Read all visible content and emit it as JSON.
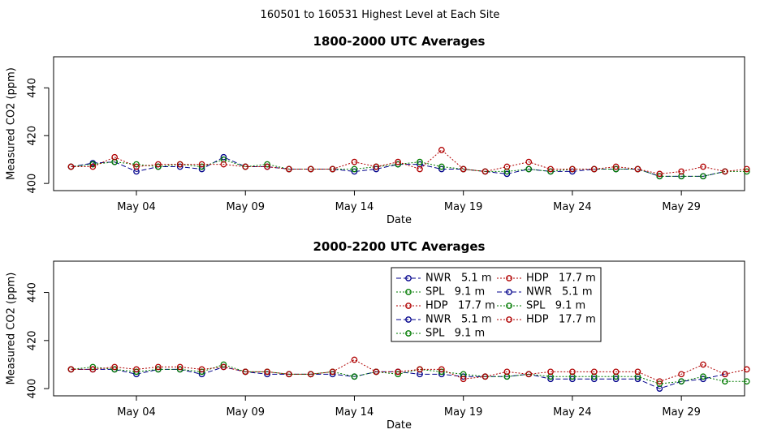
{
  "page_title": "160501  to  160531 Highest Level at Each Site",
  "colors": {
    "NWR": "#00008b",
    "SPL": "#007a00",
    "HDP": "#b00000"
  },
  "chart_data": [
    {
      "type": "line",
      "title": "1800-2000 UTC Averages",
      "xlabel": "Date",
      "ylabel": "Measured CO2 (ppm)",
      "xlim": [
        0.2,
        31.9
      ],
      "ylim": [
        397,
        453
      ],
      "x_ticks": [
        {
          "v": 4,
          "label": "May 04"
        },
        {
          "v": 9,
          "label": "May 09"
        },
        {
          "v": 14,
          "label": "May 14"
        },
        {
          "v": 19,
          "label": "May 19"
        },
        {
          "v": 24,
          "label": "May 24"
        },
        {
          "v": 29,
          "label": "May 29"
        }
      ],
      "y_ticks": [
        400,
        420,
        440
      ],
      "series": [
        {
          "name": "NWR",
          "values": [
            [
              1,
              407
            ],
            [
              2,
              408.5
            ],
            [
              3,
              409
            ],
            [
              4,
              405
            ],
            [
              5,
              407
            ],
            [
              6,
              407
            ],
            [
              7,
              406
            ],
            [
              8,
              411
            ],
            [
              9,
              407
            ],
            [
              10,
              407
            ],
            [
              11,
              406
            ],
            [
              12,
              406
            ],
            [
              13,
              406
            ],
            [
              14,
              405
            ],
            [
              15,
              406
            ],
            [
              16,
              408
            ],
            [
              17,
              408
            ],
            [
              18,
              406
            ],
            [
              19,
              406
            ],
            [
              20,
              405
            ],
            [
              21,
              404
            ],
            [
              22,
              406
            ],
            [
              23,
              405
            ],
            [
              24,
              405
            ],
            [
              25,
              406
            ],
            [
              26,
              406
            ],
            [
              27,
              406
            ],
            [
              28,
              403
            ],
            [
              29,
              403
            ],
            [
              30,
              403
            ],
            [
              31,
              405
            ]
          ]
        },
        {
          "name": "SPL",
          "values": [
            [
              1,
              407
            ],
            [
              2,
              408
            ],
            [
              3,
              409
            ],
            [
              4,
              408
            ],
            [
              5,
              407
            ],
            [
              6,
              408
            ],
            [
              7,
              407
            ],
            [
              8,
              410
            ],
            [
              9,
              407
            ],
            [
              10,
              408
            ],
            [
              11,
              406
            ],
            [
              12,
              406
            ],
            [
              13,
              406
            ],
            [
              14,
              406
            ],
            [
              15,
              407
            ],
            [
              16,
              408
            ],
            [
              17,
              409
            ],
            [
              18,
              407
            ],
            [
              19,
              406
            ],
            [
              20,
              405
            ],
            [
              21,
              405
            ],
            [
              22,
              406
            ],
            [
              23,
              405
            ],
            [
              24,
              406
            ],
            [
              25,
              406
            ],
            [
              26,
              406
            ],
            [
              27,
              406
            ],
            [
              28,
              403
            ],
            [
              29,
              403
            ],
            [
              30,
              403
            ],
            [
              31,
              405
            ],
            [
              32,
              405
            ]
          ]
        },
        {
          "name": "HDP",
          "values": [
            [
              1,
              407
            ],
            [
              2,
              407
            ],
            [
              3,
              411
            ],
            [
              4,
              407
            ],
            [
              5,
              408
            ],
            [
              6,
              408
            ],
            [
              7,
              408
            ],
            [
              8,
              408
            ],
            [
              9,
              407
            ],
            [
              10,
              407
            ],
            [
              11,
              406
            ],
            [
              12,
              406
            ],
            [
              13,
              406
            ],
            [
              14,
              409
            ],
            [
              15,
              407
            ],
            [
              16,
              409
            ],
            [
              17,
              406
            ],
            [
              18,
              414
            ],
            [
              19,
              406
            ],
            [
              20,
              405
            ],
            [
              21,
              407
            ],
            [
              22,
              409
            ],
            [
              23,
              406
            ],
            [
              24,
              406
            ],
            [
              25,
              406
            ],
            [
              26,
              407
            ],
            [
              27,
              406
            ],
            [
              28,
              404
            ],
            [
              29,
              405
            ],
            [
              30,
              407
            ],
            [
              31,
              405
            ],
            [
              32,
              406
            ]
          ]
        }
      ]
    },
    {
      "type": "line",
      "title": "2000-2200 UTC Averages",
      "xlabel": "Date",
      "ylabel": "Measured CO2 (ppm)",
      "xlim": [
        0.2,
        31.9
      ],
      "ylim": [
        397,
        453
      ],
      "x_ticks": [
        {
          "v": 4,
          "label": "May 04"
        },
        {
          "v": 9,
          "label": "May 09"
        },
        {
          "v": 14,
          "label": "May 14"
        },
        {
          "v": 19,
          "label": "May 19"
        },
        {
          "v": 24,
          "label": "May 24"
        },
        {
          "v": 29,
          "label": "May 29"
        }
      ],
      "y_ticks": [
        400,
        420,
        440
      ],
      "series": [
        {
          "name": "NWR",
          "values": [
            [
              1,
              408
            ],
            [
              2,
              408
            ],
            [
              3,
              408
            ],
            [
              4,
              406
            ],
            [
              5,
              408
            ],
            [
              6,
              408
            ],
            [
              7,
              406
            ],
            [
              8,
              409
            ],
            [
              9,
              407
            ],
            [
              10,
              406
            ],
            [
              11,
              406
            ],
            [
              12,
              406
            ],
            [
              13,
              406
            ],
            [
              14,
              405
            ],
            [
              15,
              407
            ],
            [
              16,
              407
            ],
            [
              17,
              406
            ],
            [
              18,
              406
            ],
            [
              19,
              405
            ],
            [
              20,
              405
            ],
            [
              21,
              405
            ],
            [
              22,
              406
            ],
            [
              23,
              404
            ],
            [
              24,
              404
            ],
            [
              25,
              404
            ],
            [
              26,
              404
            ],
            [
              27,
              404
            ],
            [
              28,
              400
            ],
            [
              29,
              403
            ],
            [
              30,
              404
            ],
            [
              31,
              406
            ]
          ]
        },
        {
          "name": "SPL",
          "values": [
            [
              1,
              408
            ],
            [
              2,
              409
            ],
            [
              3,
              408
            ],
            [
              4,
              407
            ],
            [
              5,
              408
            ],
            [
              6,
              408
            ],
            [
              7,
              407
            ],
            [
              8,
              410
            ],
            [
              9,
              407
            ],
            [
              10,
              407
            ],
            [
              11,
              406
            ],
            [
              12,
              406
            ],
            [
              13,
              407
            ],
            [
              14,
              405
            ],
            [
              15,
              407
            ],
            [
              16,
              406
            ],
            [
              17,
              408
            ],
            [
              18,
              407
            ],
            [
              19,
              406
            ],
            [
              20,
              405
            ],
            [
              21,
              405
            ],
            [
              22,
              406
            ],
            [
              23,
              405
            ],
            [
              24,
              405
            ],
            [
              25,
              405
            ],
            [
              26,
              405
            ],
            [
              27,
              405
            ],
            [
              28,
              402
            ],
            [
              29,
              403
            ],
            [
              30,
              405
            ],
            [
              31,
              403
            ],
            [
              32,
              403
            ]
          ]
        },
        {
          "name": "HDP",
          "values": [
            [
              1,
              408
            ],
            [
              2,
              408
            ],
            [
              3,
              409
            ],
            [
              4,
              408
            ],
            [
              5,
              409
            ],
            [
              6,
              409
            ],
            [
              7,
              408
            ],
            [
              8,
              409
            ],
            [
              9,
              407
            ],
            [
              10,
              407
            ],
            [
              11,
              406
            ],
            [
              12,
              406
            ],
            [
              13,
              407
            ],
            [
              14,
              412
            ],
            [
              15,
              407
            ],
            [
              16,
              407
            ],
            [
              17,
              408
            ],
            [
              18,
              408
            ],
            [
              19,
              404
            ],
            [
              20,
              405
            ],
            [
              21,
              407
            ],
            [
              22,
              406
            ],
            [
              23,
              407
            ],
            [
              24,
              407
            ],
            [
              25,
              407
            ],
            [
              26,
              407
            ],
            [
              27,
              407
            ],
            [
              28,
              403
            ],
            [
              29,
              406
            ],
            [
              30,
              410
            ],
            [
              31,
              406
            ],
            [
              32,
              408
            ]
          ]
        }
      ],
      "legend": {
        "position": "top-right",
        "entries": [
          {
            "site": "NWR",
            "label": "NWR   5.1 m"
          },
          {
            "site": "SPL",
            "label": "SPL   9.1 m"
          },
          {
            "site": "HDP",
            "label": "HDP   17.7 m"
          },
          {
            "site": "NWR",
            "label": "NWR   5.1 m"
          },
          {
            "site": "SPL",
            "label": "SPL   9.1 m"
          },
          {
            "site": "HDP",
            "label": "HDP   17.7 m"
          },
          {
            "site": "NWR",
            "label": "NWR   5.1 m"
          },
          {
            "site": "SPL",
            "label": "SPL   9.1 m"
          },
          {
            "site": "HDP",
            "label": "HDP   17.7 m"
          }
        ]
      }
    }
  ]
}
